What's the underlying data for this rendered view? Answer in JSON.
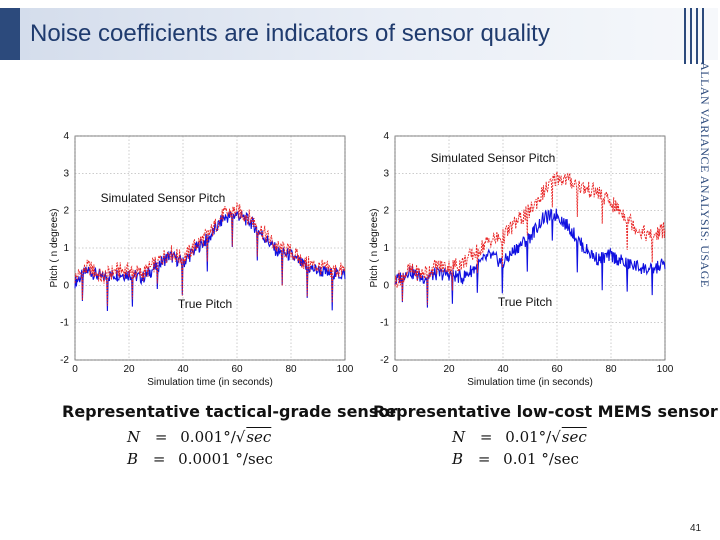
{
  "slide": {
    "title": "Noise coefficients are indicators of sensor quality",
    "side_caption": "ALLAN VARIANCE ANALYSIS: USAGE",
    "page_number": "41"
  },
  "charts": [
    {
      "ylabel": "Pitch ( n degrees)",
      "xlabel": "Simulation time (in seconds)",
      "sensor_title": "Representative tactical-grade sensor",
      "eq_N_value": "0.001°/",
      "eq_B_value": "0.0001 °/sec"
    },
    {
      "ylabel": "Pitch ( n degrees)",
      "xlabel": "Simulation time (in seconds)",
      "sensor_title": "Representative low-cost MEMS sensor",
      "eq_N_value": "0.01°/",
      "eq_B_value": "0.01 °/sec"
    }
  ],
  "equation_labels": {
    "N": "N",
    "B": "B",
    "equals": "=",
    "sqrt_sec": "sec"
  },
  "chart_data": [
    {
      "type": "line",
      "xlabel": "Simulation time (in seconds)",
      "ylabel": "Pitch ( n degrees)",
      "xlim": [
        0,
        100
      ],
      "ylim": [
        -2,
        4
      ],
      "x_ticks": [
        0,
        20,
        40,
        60,
        80,
        100
      ],
      "y_ticks": [
        -2,
        -1,
        0,
        1,
        2,
        3,
        4
      ],
      "grid": true,
      "annotations": [
        "Simulated Sensor Pitch",
        "True Pitch"
      ],
      "series": [
        {
          "name": "True Pitch",
          "color": "#1010e0",
          "x": [
            0,
            5,
            10,
            15,
            20,
            25,
            30,
            35,
            40,
            45,
            50,
            55,
            60,
            65,
            70,
            75,
            80,
            85,
            90,
            95,
            100
          ],
          "y": [
            0.1,
            0.4,
            0.2,
            0.3,
            0.3,
            0.2,
            0.5,
            0.8,
            0.6,
            1.0,
            1.3,
            1.8,
            1.9,
            1.7,
            1.3,
            0.9,
            0.8,
            0.5,
            0.4,
            0.3,
            0.3
          ]
        },
        {
          "name": "Simulated Sensor Pitch",
          "color": "#e82020",
          "x": [
            0,
            5,
            10,
            15,
            20,
            25,
            30,
            35,
            40,
            45,
            50,
            55,
            60,
            65,
            70,
            75,
            80,
            85,
            90,
            95,
            100
          ],
          "y": [
            0.2,
            0.5,
            0.2,
            0.4,
            0.4,
            0.3,
            0.6,
            0.9,
            0.7,
            1.1,
            1.4,
            1.9,
            2.0,
            1.8,
            1.4,
            1.0,
            0.9,
            0.6,
            0.5,
            0.4,
            0.4
          ]
        }
      ]
    },
    {
      "type": "line",
      "xlabel": "Simulation time (in seconds)",
      "ylabel": "Pitch ( n degrees)",
      "xlim": [
        0,
        100
      ],
      "ylim": [
        -2,
        4
      ],
      "x_ticks": [
        0,
        20,
        40,
        60,
        80,
        100
      ],
      "y_ticks": [
        -2,
        -1,
        0,
        1,
        2,
        3,
        4
      ],
      "grid": true,
      "annotations": [
        "Simulated Sensor Pitch",
        "True Pitch"
      ],
      "series": [
        {
          "name": "True Pitch",
          "color": "#1010e0",
          "x": [
            0,
            5,
            10,
            15,
            20,
            25,
            30,
            35,
            40,
            45,
            50,
            55,
            60,
            65,
            70,
            75,
            80,
            85,
            90,
            95,
            100
          ],
          "y": [
            0.1,
            0.4,
            0.2,
            0.3,
            0.3,
            0.2,
            0.5,
            0.8,
            0.6,
            1.0,
            1.3,
            1.8,
            1.9,
            1.5,
            1.0,
            0.7,
            0.8,
            0.6,
            0.5,
            0.4,
            0.6
          ]
        },
        {
          "name": "Simulated Sensor Pitch",
          "color": "#e82020",
          "x": [
            0,
            5,
            10,
            15,
            20,
            25,
            30,
            35,
            40,
            45,
            50,
            55,
            60,
            65,
            70,
            75,
            80,
            85,
            90,
            95,
            100
          ],
          "y": [
            0.1,
            0.4,
            0.3,
            0.5,
            0.5,
            0.6,
            0.9,
            1.2,
            1.3,
            1.7,
            2.0,
            2.5,
            2.9,
            2.8,
            2.6,
            2.5,
            2.2,
            1.9,
            1.5,
            1.3,
            1.5
          ]
        }
      ]
    }
  ]
}
